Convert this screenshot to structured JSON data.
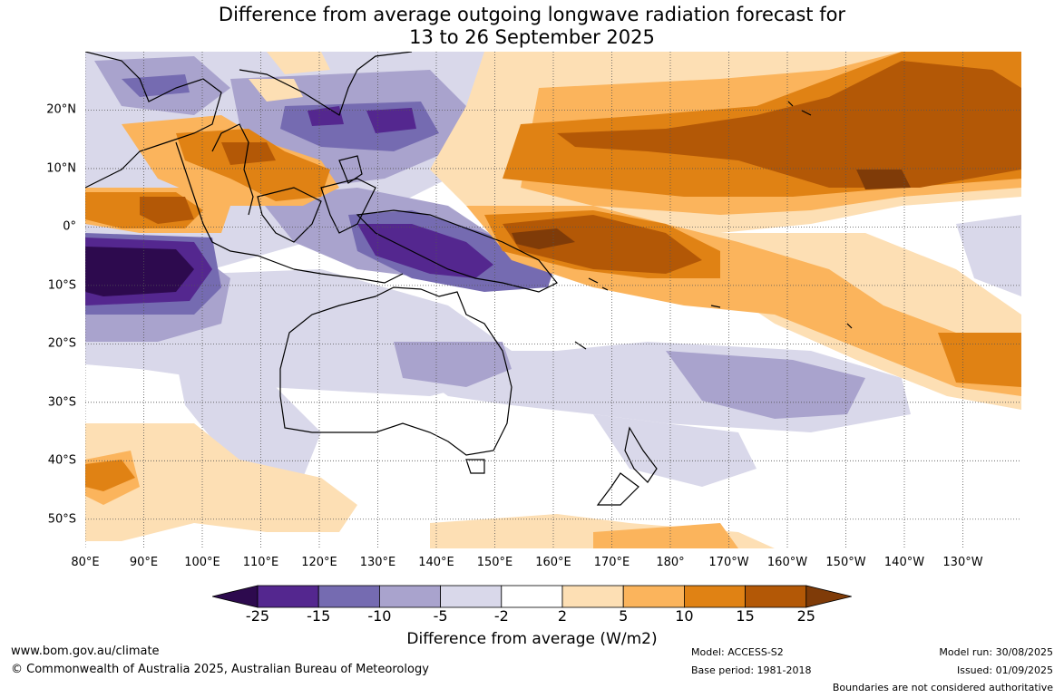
{
  "title": {
    "line1": "Difference from average outgoing longwave radiation forecast for",
    "line2": "13 to 26 September 2025"
  },
  "map": {
    "lat_labels": [
      "20°N",
      "10°N",
      "0°",
      "10°S",
      "20°S",
      "30°S",
      "40°S",
      "50°S"
    ],
    "lon_labels": [
      "80°E",
      "90°E",
      "100°E",
      "110°E",
      "120°E",
      "130°E",
      "140°E",
      "150°E",
      "160°E",
      "170°E",
      "180°",
      "170°W",
      "160°W",
      "150°W",
      "140°W",
      "130°W"
    ],
    "gridlines": "dotted",
    "extent": {
      "lon_min": 80,
      "lon_max": 240,
      "lat_min": -55,
      "lat_max": 30
    }
  },
  "legend": {
    "title": "Difference from average (W/m2)",
    "ticks": [
      "-25",
      "-15",
      "-10",
      "-5",
      "-2",
      "2",
      "5",
      "10",
      "15",
      "25"
    ],
    "colors": [
      "#2d0a4e",
      "#54278f",
      "#756bb1",
      "#a9a3cd",
      "#d9d8ea",
      "#ffffff",
      "#fddfb4",
      "#fbb45c",
      "#e08214",
      "#b35806",
      "#7f3b08"
    ]
  },
  "footer": {
    "website": "www.bom.gov.au/climate",
    "copyright": "© Commonwealth of Australia 2025, Australian Bureau of Meteorology",
    "model": "Model: ACCESS-S2",
    "base_period": "Base period: 1981-2018",
    "model_run": "Model run: 30/08/2025",
    "issued": "Issued: 01/09/2025",
    "disclaimer": "Boundaries are not considered authoritative"
  }
}
